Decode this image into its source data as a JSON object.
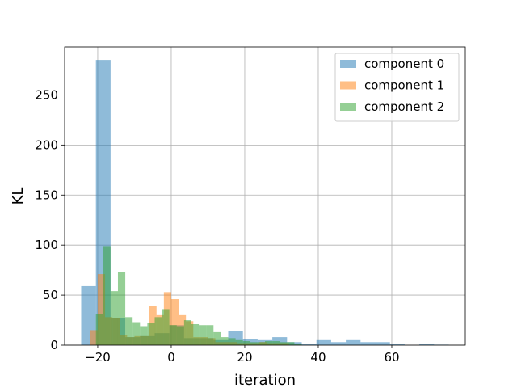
{
  "chart_data": {
    "type": "bar",
    "subtype": "overlapping-histogram",
    "xlabel": "iteration",
    "ylabel": "KL",
    "xlim": [
      -29,
      80
    ],
    "ylim": [
      0,
      298
    ],
    "xticks": [
      -20,
      0,
      20,
      40,
      60
    ],
    "yticks": [
      0,
      50,
      100,
      150,
      200,
      250
    ],
    "grid": true,
    "legend_position": "top-right",
    "series": [
      {
        "name": "component 0",
        "color": "#1f77b4",
        "opacity": 0.5,
        "bins": [
          {
            "x0": -24.5,
            "x1": -20.5,
            "count": 59
          },
          {
            "x0": -20.5,
            "x1": -16.5,
            "count": 285
          },
          {
            "x0": -16.5,
            "x1": -12.5,
            "count": 27
          },
          {
            "x0": -12.5,
            "x1": -8.5,
            "count": 8
          },
          {
            "x0": -8.5,
            "x1": -4.5,
            "count": 9
          },
          {
            "x0": -4.5,
            "x1": -0.5,
            "count": 12
          },
          {
            "x0": -0.5,
            "x1": 3.5,
            "count": 20
          },
          {
            "x0": 3.5,
            "x1": 7.5,
            "count": 7
          },
          {
            "x0": 7.5,
            "x1": 11.5,
            "count": 7
          },
          {
            "x0": 11.5,
            "x1": 15.5,
            "count": 5
          },
          {
            "x0": 15.5,
            "x1": 19.5,
            "count": 14
          },
          {
            "x0": 19.5,
            "x1": 23.5,
            "count": 6
          },
          {
            "x0": 23.5,
            "x1": 27.5,
            "count": 5
          },
          {
            "x0": 27.5,
            "x1": 31.5,
            "count": 8
          },
          {
            "x0": 31.5,
            "x1": 35.5,
            "count": 3
          },
          {
            "x0": 35.5,
            "x1": 39.5,
            "count": 1
          },
          {
            "x0": 39.5,
            "x1": 43.5,
            "count": 5
          },
          {
            "x0": 43.5,
            "x1": 47.5,
            "count": 3
          },
          {
            "x0": 47.5,
            "x1": 51.5,
            "count": 5
          },
          {
            "x0": 51.5,
            "x1": 55.5,
            "count": 3
          },
          {
            "x0": 55.5,
            "x1": 59.5,
            "count": 3
          },
          {
            "x0": 59.5,
            "x1": 63.5,
            "count": 1
          },
          {
            "x0": 67.5,
            "x1": 71.5,
            "count": 1
          },
          {
            "x0": 71.5,
            "x1": 75.5,
            "count": 0.5
          }
        ]
      },
      {
        "name": "component 1",
        "color": "#ff7f0e",
        "opacity": 0.5,
        "bins": [
          {
            "x0": -22,
            "x1": -20,
            "count": 15
          },
          {
            "x0": -20,
            "x1": -18,
            "count": 71
          },
          {
            "x0": -18,
            "x1": -16,
            "count": 28
          },
          {
            "x0": -16,
            "x1": -14,
            "count": 27
          },
          {
            "x0": -14,
            "x1": -12,
            "count": 10
          },
          {
            "x0": -12,
            "x1": -10,
            "count": 8
          },
          {
            "x0": -10,
            "x1": -8,
            "count": 9
          },
          {
            "x0": -8,
            "x1": -6,
            "count": 9
          },
          {
            "x0": -6,
            "x1": -4,
            "count": 39
          },
          {
            "x0": -4,
            "x1": -2,
            "count": 30
          },
          {
            "x0": -2,
            "x1": 0,
            "count": 53
          },
          {
            "x0": 0,
            "x1": 2,
            "count": 46
          },
          {
            "x0": 2,
            "x1": 4,
            "count": 30
          },
          {
            "x0": 4,
            "x1": 6,
            "count": 24
          },
          {
            "x0": 6,
            "x1": 8,
            "count": 8
          },
          {
            "x0": 8,
            "x1": 10,
            "count": 8
          },
          {
            "x0": 10,
            "x1": 12,
            "count": 7
          },
          {
            "x0": 12,
            "x1": 14,
            "count": 3
          },
          {
            "x0": 14,
            "x1": 16,
            "count": 3
          },
          {
            "x0": 16,
            "x1": 18,
            "count": 3
          },
          {
            "x0": 18,
            "x1": 20,
            "count": 2
          },
          {
            "x0": 20,
            "x1": 22,
            "count": 2
          },
          {
            "x0": 22,
            "x1": 24,
            "count": 2
          },
          {
            "x0": 24,
            "x1": 26,
            "count": 3
          },
          {
            "x0": 26,
            "x1": 28,
            "count": 2
          },
          {
            "x0": 28,
            "x1": 30,
            "count": 2
          },
          {
            "x0": 30,
            "x1": 32,
            "count": 2
          }
        ]
      },
      {
        "name": "component 2",
        "color": "#2ca02c",
        "opacity": 0.5,
        "bins": [
          {
            "x0": -20.5,
            "x1": -18.5,
            "count": 31
          },
          {
            "x0": -18.5,
            "x1": -16.5,
            "count": 99
          },
          {
            "x0": -16.5,
            "x1": -14.5,
            "count": 54
          },
          {
            "x0": -14.5,
            "x1": -12.5,
            "count": 73
          },
          {
            "x0": -12.5,
            "x1": -10.5,
            "count": 28
          },
          {
            "x0": -10.5,
            "x1": -8.5,
            "count": 23
          },
          {
            "x0": -8.5,
            "x1": -6.5,
            "count": 19
          },
          {
            "x0": -6.5,
            "x1": -4.5,
            "count": 22
          },
          {
            "x0": -4.5,
            "x1": -2.5,
            "count": 28
          },
          {
            "x0": -2.5,
            "x1": -0.5,
            "count": 36
          },
          {
            "x0": -0.5,
            "x1": 1.5,
            "count": 20
          },
          {
            "x0": 1.5,
            "x1": 3.5,
            "count": 19
          },
          {
            "x0": 3.5,
            "x1": 5.5,
            "count": 25
          },
          {
            "x0": 5.5,
            "x1": 7.5,
            "count": 21
          },
          {
            "x0": 7.5,
            "x1": 9.5,
            "count": 20
          },
          {
            "x0": 9.5,
            "x1": 11.5,
            "count": 20
          },
          {
            "x0": 11.5,
            "x1": 13.5,
            "count": 13
          },
          {
            "x0": 13.5,
            "x1": 15.5,
            "count": 8
          },
          {
            "x0": 15.5,
            "x1": 17.5,
            "count": 7
          },
          {
            "x0": 17.5,
            "x1": 19.5,
            "count": 5
          },
          {
            "x0": 19.5,
            "x1": 21.5,
            "count": 4
          },
          {
            "x0": 21.5,
            "x1": 23.5,
            "count": 3
          },
          {
            "x0": 23.5,
            "x1": 25.5,
            "count": 3
          },
          {
            "x0": 25.5,
            "x1": 27.5,
            "count": 4
          },
          {
            "x0": 27.5,
            "x1": 29.5,
            "count": 4
          },
          {
            "x0": 29.5,
            "x1": 31.5,
            "count": 3
          },
          {
            "x0": 31.5,
            "x1": 33.5,
            "count": 3
          },
          {
            "x0": 33.5,
            "x1": 35.5,
            "count": 1
          }
        ]
      }
    ]
  }
}
